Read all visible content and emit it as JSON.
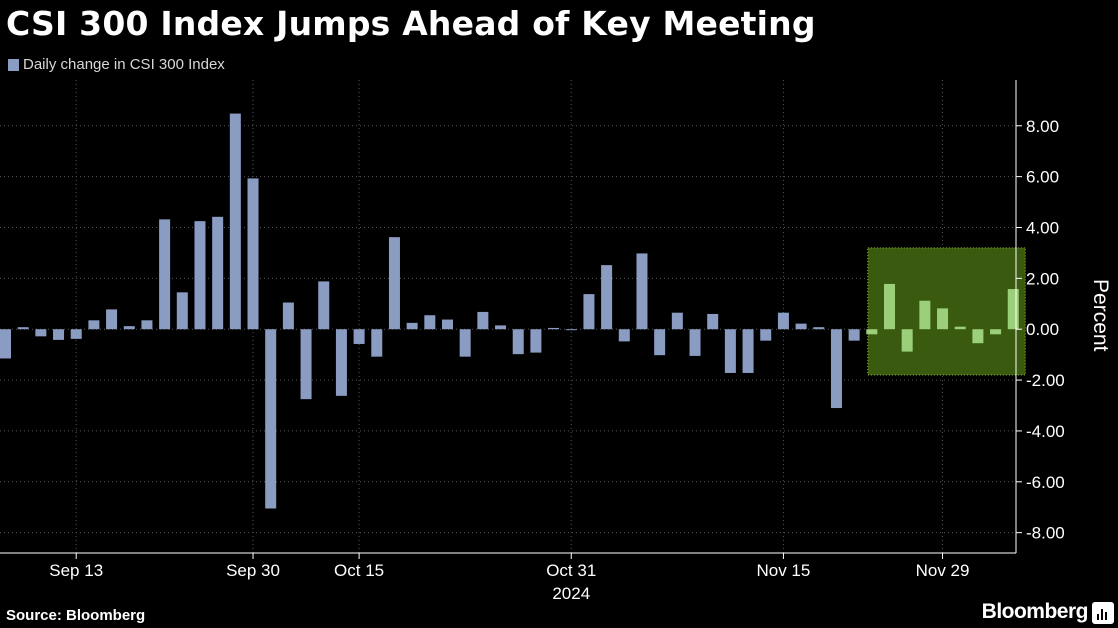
{
  "title": "CSI 300 Index Jumps Ahead of Key Meeting",
  "legend_label": "Daily change in CSI 300 Index",
  "source": "Source: Bloomberg",
  "brand": "Bloomberg",
  "colors": {
    "bar": "#8a9cc2",
    "highlight_fill": "#3a5a10",
    "highlight_border": "#8fc23a",
    "highlight_bar": "#9ccf7a",
    "grid": "#555555"
  },
  "chart_data": {
    "type": "bar",
    "ylabel": "Percent",
    "ylim": [
      -8.8,
      9.8
    ],
    "y_ticks": [
      "8.00",
      "6.00",
      "4.00",
      "2.00",
      "0.00",
      "-2.00",
      "-4.00",
      "-6.00",
      "-8.00"
    ],
    "y_tick_values": [
      8,
      6,
      4,
      2,
      0,
      -2,
      -4,
      -6,
      -8
    ],
    "x_ticks": [
      "Sep 13",
      "Sep 30",
      "Oct 15",
      "Oct 31",
      "Nov 15",
      "Nov 29"
    ],
    "x_tick_index": [
      4,
      14,
      20,
      32,
      44,
      53
    ],
    "year_label": "2024",
    "year_label_index": 32,
    "values": [
      -1.15,
      0.08,
      -0.28,
      -0.42,
      -0.38,
      0.35,
      0.78,
      0.12,
      0.35,
      4.32,
      1.45,
      4.25,
      4.42,
      8.48,
      5.93,
      -7.05,
      1.05,
      -2.75,
      1.88,
      -2.62,
      -0.58,
      -1.08,
      3.62,
      0.25,
      0.55,
      0.38,
      -1.08,
      0.68,
      0.15,
      -0.98,
      -0.92,
      0.05,
      -0.03,
      1.38,
      2.52,
      -0.48,
      2.98,
      -1.02,
      0.65,
      -1.05,
      0.6,
      -1.72,
      -1.72,
      -0.45,
      0.65,
      0.22,
      0.08,
      -3.1,
      -0.45,
      -0.2,
      1.78,
      -0.88,
      1.12,
      0.82,
      0.1,
      -0.55,
      -0.2,
      1.58
    ],
    "highlight": {
      "start_index": 49,
      "end_index": 57,
      "ymin": -1.8,
      "ymax": 3.2
    }
  }
}
